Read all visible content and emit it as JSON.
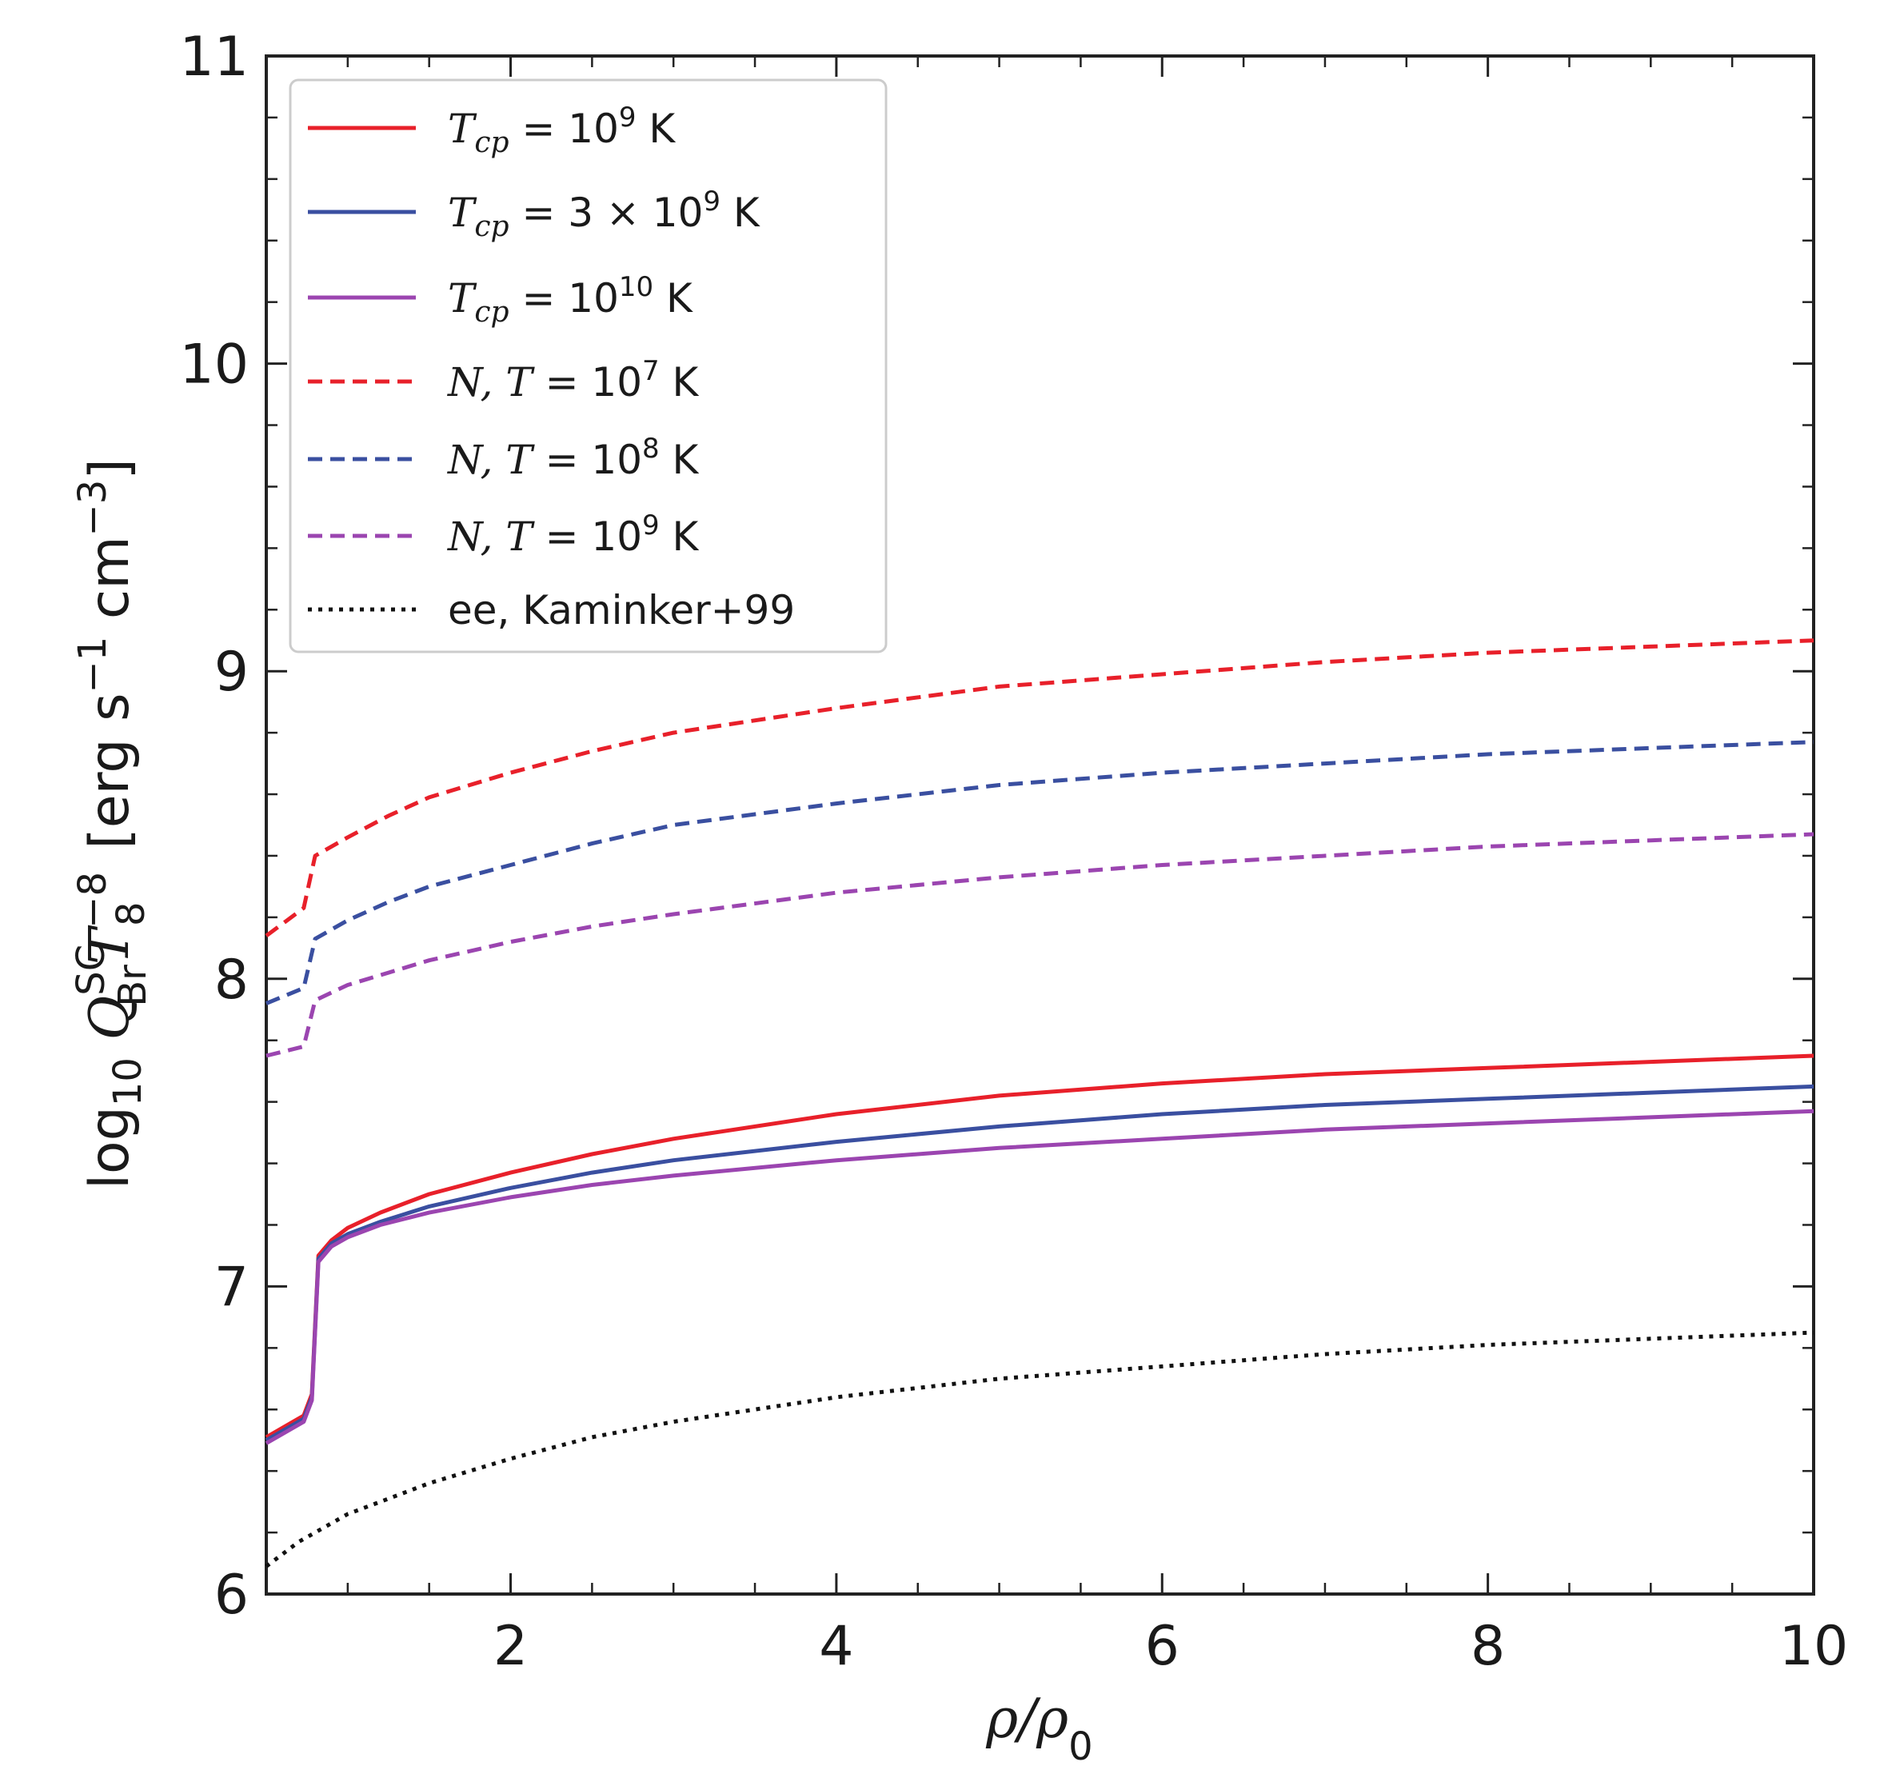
{
  "chart_data": {
    "type": "line",
    "title": "",
    "xlabel": "ρ/ρ₀",
    "ylabel": "log10 Q_Br^SC T_8^-8 [erg s^-1 cm^-3]",
    "xlim": [
      0.5,
      10
    ],
    "ylim": [
      6,
      11
    ],
    "xticks": [
      2,
      4,
      6,
      8,
      10
    ],
    "yticks": [
      6,
      7,
      8,
      9,
      10,
      11
    ],
    "xtick_labels": [
      "2",
      "4",
      "6",
      "8",
      "10"
    ],
    "ytick_labels": [
      "6",
      "7",
      "8",
      "9",
      "10",
      "11"
    ],
    "grid": false,
    "legend_position": "top-left",
    "series": [
      {
        "name": "T_cp = 10^9 K",
        "color": "#e8202a",
        "style": "solid",
        "x": [
          0.5,
          0.73,
          0.78,
          0.82,
          0.9,
          1.0,
          1.2,
          1.5,
          2.0,
          2.5,
          3.0,
          4.0,
          5.0,
          6.0,
          7.0,
          8.0,
          9.0,
          10.0
        ],
        "y": [
          6.51,
          6.58,
          6.65,
          7.1,
          7.15,
          7.19,
          7.24,
          7.3,
          7.37,
          7.43,
          7.48,
          7.56,
          7.62,
          7.66,
          7.69,
          7.71,
          7.73,
          7.75
        ]
      },
      {
        "name": "T_cp = 3 × 10^9 K",
        "color": "#3a4fa0",
        "style": "solid",
        "x": [
          0.5,
          0.73,
          0.78,
          0.82,
          0.9,
          1.0,
          1.2,
          1.5,
          2.0,
          2.5,
          3.0,
          4.0,
          5.0,
          6.0,
          7.0,
          8.0,
          9.0,
          10.0
        ],
        "y": [
          6.5,
          6.57,
          6.64,
          7.09,
          7.14,
          7.17,
          7.21,
          7.26,
          7.32,
          7.37,
          7.41,
          7.47,
          7.52,
          7.56,
          7.59,
          7.61,
          7.63,
          7.65
        ]
      },
      {
        "name": "T_cp = 10^10 K",
        "color": "#9b45b0",
        "style": "solid",
        "x": [
          0.5,
          0.73,
          0.78,
          0.82,
          0.9,
          1.0,
          1.2,
          1.5,
          2.0,
          2.5,
          3.0,
          4.0,
          5.0,
          6.0,
          7.0,
          8.0,
          9.0,
          10.0
        ],
        "y": [
          6.49,
          6.56,
          6.63,
          7.08,
          7.13,
          7.16,
          7.2,
          7.24,
          7.29,
          7.33,
          7.36,
          7.41,
          7.45,
          7.48,
          7.51,
          7.53,
          7.55,
          7.57
        ]
      },
      {
        "name": "N, T = 10^7 K",
        "color": "#e8202a",
        "style": "dashed",
        "x": [
          0.5,
          0.73,
          0.8,
          1.0,
          1.25,
          1.5,
          2.0,
          2.5,
          3.0,
          4.0,
          5.0,
          6.0,
          7.0,
          8.0,
          9.0,
          10.0
        ],
        "y": [
          8.14,
          8.23,
          8.4,
          8.46,
          8.53,
          8.59,
          8.67,
          8.74,
          8.8,
          8.88,
          8.95,
          8.99,
          9.03,
          9.06,
          9.08,
          9.1
        ]
      },
      {
        "name": "N, T = 10^8 K",
        "color": "#3a4fa0",
        "style": "dashed",
        "x": [
          0.5,
          0.73,
          0.8,
          1.0,
          1.25,
          1.5,
          2.0,
          2.5,
          3.0,
          4.0,
          5.0,
          6.0,
          7.0,
          8.0,
          9.0,
          10.0
        ],
        "y": [
          7.92,
          7.97,
          8.13,
          8.19,
          8.25,
          8.3,
          8.37,
          8.44,
          8.5,
          8.57,
          8.63,
          8.67,
          8.7,
          8.73,
          8.75,
          8.77
        ]
      },
      {
        "name": "N, T = 10^9 K",
        "color": "#9b45b0",
        "style": "dashed",
        "x": [
          0.5,
          0.73,
          0.8,
          1.0,
          1.25,
          1.5,
          2.0,
          2.5,
          3.0,
          4.0,
          5.0,
          6.0,
          7.0,
          8.0,
          9.0,
          10.0
        ],
        "y": [
          7.75,
          7.78,
          7.93,
          7.98,
          8.02,
          8.06,
          8.12,
          8.17,
          8.21,
          8.28,
          8.33,
          8.37,
          8.4,
          8.43,
          8.45,
          8.47
        ]
      },
      {
        "name": "ee, Kaminker+99",
        "color": "#111111",
        "style": "dotted",
        "x": [
          0.5,
          0.6,
          0.7,
          0.8,
          1.0,
          1.25,
          1.5,
          2.0,
          2.5,
          3.0,
          4.0,
          5.0,
          6.0,
          7.0,
          8.0,
          9.0,
          10.0
        ],
        "y": [
          6.09,
          6.13,
          6.17,
          6.2,
          6.26,
          6.31,
          6.36,
          6.44,
          6.51,
          6.56,
          6.64,
          6.7,
          6.74,
          6.78,
          6.81,
          6.83,
          6.85
        ]
      }
    ]
  }
}
